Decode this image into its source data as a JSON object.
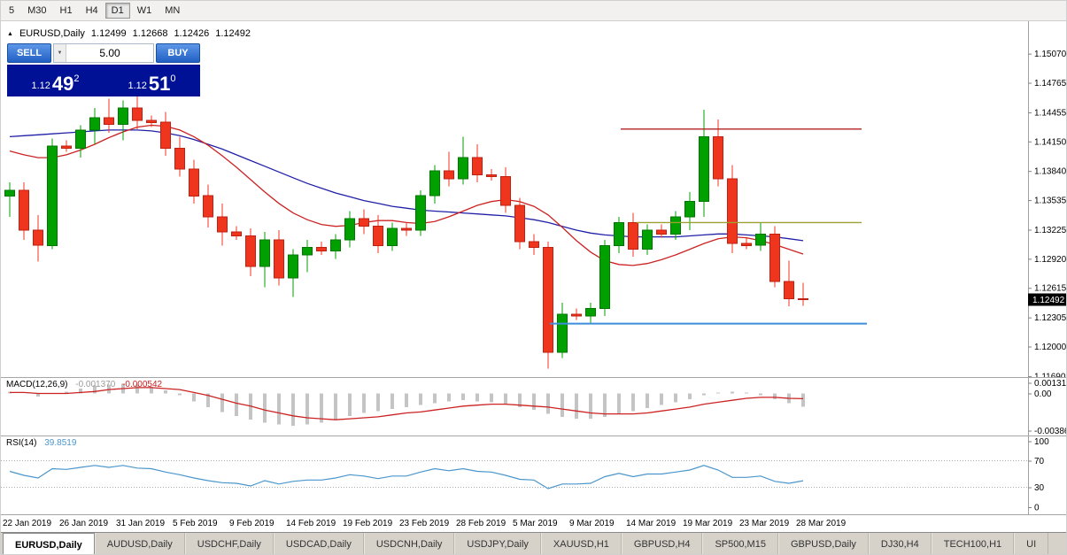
{
  "ui": {
    "toolbar": {
      "timeframes": [
        {
          "label": "5",
          "active": false
        },
        {
          "label": "M30",
          "active": false
        },
        {
          "label": "H1",
          "active": false
        },
        {
          "label": "H4",
          "active": false
        },
        {
          "label": "D1",
          "active": true
        },
        {
          "label": "W1",
          "active": false
        },
        {
          "label": "MN",
          "active": false
        }
      ]
    },
    "chart_header": {
      "symbol": "EURUSD,Daily",
      "open": "1.12499",
      "high": "1.12668",
      "low": "1.12426",
      "close": "1.12492"
    },
    "trade_panel": {
      "sell_label": "SELL",
      "buy_label": "BUY",
      "volume": "5.00",
      "sell_price_prefix": "1.12",
      "sell_price_big": "49",
      "sell_price_sup": "2",
      "buy_price_prefix": "1.12",
      "buy_price_big": "51",
      "buy_price_sup": "0"
    },
    "price_tag": "1.12492",
    "tabs": [
      {
        "label": "EURUSD,Daily",
        "active": true
      },
      {
        "label": "AUDUSD,Daily",
        "active": false
      },
      {
        "label": "USDCHF,Daily",
        "active": false
      },
      {
        "label": "USDCAD,Daily",
        "active": false
      },
      {
        "label": "USDCNH,Daily",
        "active": false
      },
      {
        "label": "USDJPY,Daily",
        "active": false
      },
      {
        "label": "XAUUSD,H1",
        "active": false
      },
      {
        "label": "GBPUSD,H4",
        "active": false
      },
      {
        "label": "SP500,M15",
        "active": false
      },
      {
        "label": "GBPUSD,Daily",
        "active": false
      },
      {
        "label": "DJ30,H4",
        "active": false
      },
      {
        "label": "TECH100,H1",
        "active": false
      },
      {
        "label": "UI",
        "active": false
      }
    ]
  },
  "chart_data": [
    {
      "type": "candlestick",
      "symbol": "EURUSD",
      "timeframe": "Daily",
      "ylim": [
        1.1168,
        1.1541
      ],
      "axis_labels": [
        "1.15070",
        "1.14765",
        "1.14455",
        "1.14150",
        "1.13840",
        "1.13535",
        "1.13225",
        "1.12920",
        "1.12615",
        "1.12305",
        "1.12000",
        "1.11690"
      ],
      "current_price": 1.12492,
      "x_labels": [
        {
          "label": "22 Jan 2019",
          "i": 0
        },
        {
          "label": "26 Jan 2019",
          "i": 4
        },
        {
          "label": "31 Jan 2019",
          "i": 8
        },
        {
          "label": "5 Feb 2019",
          "i": 12
        },
        {
          "label": "9 Feb 2019",
          "i": 16
        },
        {
          "label": "14 Feb 2019",
          "i": 20
        },
        {
          "label": "19 Feb 2019",
          "i": 24
        },
        {
          "label": "23 Feb 2019",
          "i": 28
        },
        {
          "label": "28 Feb 2019",
          "i": 32
        },
        {
          "label": "5 Mar 2019",
          "i": 36
        },
        {
          "label": "9 Mar 2019",
          "i": 40
        },
        {
          "label": "14 Mar 2019",
          "i": 44
        },
        {
          "label": "19 Mar 2019",
          "i": 48
        },
        {
          "label": "23 Mar 2019",
          "i": 52
        },
        {
          "label": "28 Mar 2019",
          "i": 56
        }
      ],
      "candles": [
        [
          1.1358,
          1.1372,
          1.1336,
          1.1364
        ],
        [
          1.1364,
          1.1372,
          1.1312,
          1.1322
        ],
        [
          1.1322,
          1.1338,
          1.1289,
          1.1306
        ],
        [
          1.1306,
          1.1418,
          1.1302,
          1.141
        ],
        [
          1.141,
          1.1416,
          1.1404,
          1.1408
        ],
        [
          1.1408,
          1.1432,
          1.1398,
          1.1427
        ],
        [
          1.1427,
          1.145,
          1.1412,
          1.144
        ],
        [
          1.144,
          1.146,
          1.1424,
          1.1433
        ],
        [
          1.1433,
          1.1458,
          1.1416,
          1.145
        ],
        [
          1.145,
          1.1464,
          1.1428,
          1.1437
        ],
        [
          1.1437,
          1.1442,
          1.143,
          1.1435
        ],
        [
          1.1435,
          1.1446,
          1.14,
          1.1408
        ],
        [
          1.1408,
          1.142,
          1.1378,
          1.1386
        ],
        [
          1.1386,
          1.1396,
          1.135,
          1.1358
        ],
        [
          1.1358,
          1.137,
          1.1325,
          1.1336
        ],
        [
          1.1336,
          1.135,
          1.1306,
          1.132
        ],
        [
          1.132,
          1.1326,
          1.1312,
          1.1316
        ],
        [
          1.1316,
          1.1324,
          1.1274,
          1.1284
        ],
        [
          1.1284,
          1.132,
          1.1262,
          1.1312
        ],
        [
          1.1312,
          1.1322,
          1.1264,
          1.1272
        ],
        [
          1.1272,
          1.1302,
          1.1252,
          1.1296
        ],
        [
          1.1296,
          1.1312,
          1.1278,
          1.1304
        ],
        [
          1.1304,
          1.131,
          1.1296,
          1.13
        ],
        [
          1.13,
          1.1318,
          1.1292,
          1.1312
        ],
        [
          1.1312,
          1.1342,
          1.1304,
          1.1334
        ],
        [
          1.1334,
          1.1344,
          1.1318,
          1.1326
        ],
        [
          1.1326,
          1.1338,
          1.1298,
          1.1306
        ],
        [
          1.1306,
          1.133,
          1.13,
          1.1324
        ],
        [
          1.1324,
          1.133,
          1.1316,
          1.1322
        ],
        [
          1.1322,
          1.1364,
          1.1316,
          1.1358
        ],
        [
          1.1358,
          1.139,
          1.135,
          1.1384
        ],
        [
          1.1384,
          1.1404,
          1.1368,
          1.1376
        ],
        [
          1.1376,
          1.142,
          1.137,
          1.1398
        ],
        [
          1.1398,
          1.1412,
          1.1372,
          1.138
        ],
        [
          1.138,
          1.1386,
          1.1374,
          1.1378
        ],
        [
          1.1378,
          1.1388,
          1.134,
          1.1348
        ],
        [
          1.1348,
          1.1356,
          1.1302,
          1.131
        ],
        [
          1.131,
          1.1318,
          1.1296,
          1.1304
        ],
        [
          1.1304,
          1.131,
          1.1177,
          1.1194
        ],
        [
          1.1194,
          1.1246,
          1.1188,
          1.1234
        ],
        [
          1.1234,
          1.124,
          1.1228,
          1.1232
        ],
        [
          1.1232,
          1.1246,
          1.1224,
          1.124
        ],
        [
          1.124,
          1.1312,
          1.1232,
          1.1306
        ],
        [
          1.1306,
          1.1336,
          1.1298,
          1.133
        ],
        [
          1.133,
          1.134,
          1.1294,
          1.1302
        ],
        [
          1.1302,
          1.1328,
          1.1296,
          1.1322
        ],
        [
          1.1322,
          1.1328,
          1.1314,
          1.1318
        ],
        [
          1.1318,
          1.1342,
          1.1312,
          1.1336
        ],
        [
          1.1336,
          1.1362,
          1.1322,
          1.1352
        ],
        [
          1.1352,
          1.1448,
          1.1336,
          1.142
        ],
        [
          1.142,
          1.1438,
          1.1368,
          1.1376
        ],
        [
          1.1376,
          1.139,
          1.1298,
          1.1308
        ],
        [
          1.1308,
          1.1314,
          1.1302,
          1.1306
        ],
        [
          1.1306,
          1.133,
          1.13,
          1.1318
        ],
        [
          1.1318,
          1.1326,
          1.1262,
          1.1268
        ],
        [
          1.1268,
          1.129,
          1.1242,
          1.125
        ],
        [
          1.12499,
          1.12668,
          1.12426,
          1.12492
        ]
      ],
      "ma_slow_blue": [
        1.142,
        1.1421,
        1.1422,
        1.1423,
        1.1424,
        1.1425,
        1.1426,
        1.1427,
        1.1427,
        1.1427,
        1.1426,
        1.1424,
        1.1421,
        1.1417,
        1.1412,
        1.1407,
        1.1401,
        1.1395,
        1.1389,
        1.1383,
        1.1377,
        1.1371,
        1.1366,
        1.1361,
        1.1357,
        1.1353,
        1.135,
        1.1347,
        1.1345,
        1.1343,
        1.1342,
        1.1341,
        1.134,
        1.1339,
        1.1338,
        1.1337,
        1.1335,
        1.1333,
        1.133,
        1.1326,
        1.1322,
        1.1319,
        1.1317,
        1.1316,
        1.1315,
        1.1315,
        1.1315,
        1.1315,
        1.1316,
        1.1317,
        1.1318,
        1.1318,
        1.1317,
        1.1316,
        1.1315,
        1.1313,
        1.1311
      ],
      "ma_fast_red": [
        1.1405,
        1.1401,
        1.1398,
        1.1398,
        1.1401,
        1.1406,
        1.1412,
        1.1419,
        1.1425,
        1.143,
        1.1432,
        1.1431,
        1.1427,
        1.142,
        1.1411,
        1.14,
        1.1388,
        1.1375,
        1.1362,
        1.135,
        1.134,
        1.1333,
        1.1328,
        1.1326,
        1.1327,
        1.133,
        1.1332,
        1.1332,
        1.133,
        1.1329,
        1.1331,
        1.1336,
        1.1342,
        1.1348,
        1.1352,
        1.1354,
        1.1352,
        1.1347,
        1.1338,
        1.1325,
        1.1311,
        1.1299,
        1.129,
        1.1286,
        1.1285,
        1.1287,
        1.1291,
        1.1296,
        1.1302,
        1.1308,
        1.1313,
        1.1315,
        1.1314,
        1.1311,
        1.1307,
        1.1302,
        1.1297
      ],
      "hlines": [
        {
          "name": "resistance",
          "price": 1.1428,
          "color": "#B22222",
          "width": 1.4,
          "x1": 700,
          "x2": 972
        },
        {
          "name": "mid-level",
          "price": 1.133,
          "color": "#9DA032",
          "width": 1.4,
          "x1": 718,
          "x2": 972
        },
        {
          "name": "support",
          "price": 1.1224,
          "color": "#3E8EDE",
          "width": 2,
          "x1": 620,
          "x2": 978
        }
      ],
      "colors": {
        "up": "#00A000",
        "up_border": "#007800",
        "down": "#F0351F",
        "down_border": "#C21F0F",
        "ma_fast": "#CC2222",
        "ma_slow": "#2020A8"
      }
    },
    {
      "type": "macd",
      "name": "MACD(12,26,9)",
      "main_value": "-0.001370",
      "signal_value": "-0.000542",
      "ylim": [
        -0.00386,
        0.001313
      ],
      "axis_labels": [
        "0.001313",
        "0.00",
        "-0.00386"
      ],
      "histogram": [
        0.0002,
        0.0,
        -0.0003,
        0.0,
        0.0002,
        0.0005,
        0.0008,
        0.0009,
        0.001,
        0.0009,
        0.0007,
        0.0003,
        -0.0002,
        -0.0008,
        -0.0014,
        -0.0019,
        -0.0023,
        -0.0027,
        -0.003,
        -0.0032,
        -0.0033,
        -0.0032,
        -0.003,
        -0.0027,
        -0.0023,
        -0.002,
        -0.0018,
        -0.0016,
        -0.0014,
        -0.0012,
        -0.001,
        -0.0008,
        -0.0007,
        -0.0008,
        -0.0009,
        -0.0011,
        -0.0014,
        -0.0017,
        -0.0021,
        -0.0024,
        -0.0026,
        -0.0026,
        -0.0024,
        -0.0021,
        -0.0018,
        -0.0015,
        -0.0012,
        -0.0009,
        -0.0006,
        -0.0002,
        0.0001,
        0.0002,
        0.0001,
        -0.0002,
        -0.0006,
        -0.001,
        -0.00137
      ],
      "signal": [
        0.0001,
        0.0001,
        0.0,
        0.0,
        0.0,
        0.0001,
        0.0002,
        0.0004,
        0.0005,
        0.0006,
        0.0006,
        0.0005,
        0.0004,
        0.0001,
        -0.0002,
        -0.0006,
        -0.001,
        -0.0013,
        -0.0017,
        -0.002,
        -0.0023,
        -0.0025,
        -0.0026,
        -0.0027,
        -0.0026,
        -0.0025,
        -0.0024,
        -0.0022,
        -0.002,
        -0.0019,
        -0.0017,
        -0.0015,
        -0.0013,
        -0.0012,
        -0.0011,
        -0.0011,
        -0.0012,
        -0.0013,
        -0.0014,
        -0.0016,
        -0.0018,
        -0.002,
        -0.0021,
        -0.0021,
        -0.0021,
        -0.002,
        -0.0018,
        -0.0016,
        -0.0014,
        -0.0011,
        -0.0009,
        -0.0007,
        -0.0005,
        -0.0004,
        -0.0004,
        -0.0005,
        -0.000542
      ],
      "colors": {
        "histogram": "#C4C4C4",
        "signal": "#CC2222"
      }
    },
    {
      "type": "rsi",
      "name": "RSI(14)",
      "value": "39.8519",
      "ylim": [
        0,
        100
      ],
      "levels": [
        70,
        30
      ],
      "axis_labels": [
        "100",
        "70",
        "30",
        "0"
      ],
      "values": [
        54,
        48,
        44,
        58,
        57,
        60,
        63,
        60,
        63,
        59,
        58,
        53,
        49,
        44,
        40,
        37,
        36,
        32,
        40,
        35,
        39,
        41,
        41,
        44,
        49,
        47,
        43,
        47,
        47,
        53,
        58,
        55,
        58,
        54,
        53,
        48,
        42,
        41,
        28,
        35,
        35,
        36,
        46,
        51,
        46,
        50,
        50,
        53,
        56,
        63,
        56,
        45,
        45,
        47,
        39,
        36,
        39.85
      ],
      "color": "#4A96CC"
    }
  ]
}
